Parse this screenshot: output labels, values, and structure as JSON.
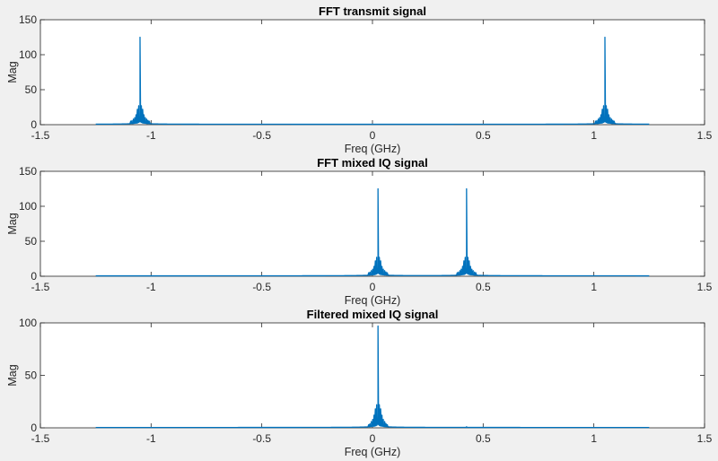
{
  "figure": {
    "background": "#f0f0f0",
    "line_color": "#0072bd"
  },
  "chart_data": [
    {
      "type": "line",
      "title": "FFT transmit signal",
      "xlabel": "Freq (GHz)",
      "ylabel": "Mag",
      "xlim": [
        -1.5,
        1.5
      ],
      "ylim": [
        0,
        150
      ],
      "xticks": [
        -1.5,
        -1,
        -0.5,
        0,
        0.5,
        1,
        1.5
      ],
      "xtick_labels": [
        "-1.5",
        "-1",
        "-0.5",
        "0",
        "0.5",
        "1",
        "1.5"
      ],
      "yticks": [
        0,
        50,
        100,
        150
      ],
      "ytick_labels": [
        "0",
        "50",
        "100",
        "150"
      ],
      "grid": false,
      "series": [
        {
          "x_range": [
            -1.25,
            1.25
          ],
          "baseline": 0.5,
          "peaks": [
            {
              "x": -1.05,
              "y": 125,
              "sidelobes": [
                27,
                22,
                14,
                10,
                8,
                6,
                5
              ]
            },
            {
              "x": 1.05,
              "y": 125,
              "sidelobes": [
                27,
                22,
                14,
                10,
                8,
                6,
                5
              ]
            }
          ]
        }
      ]
    },
    {
      "type": "line",
      "title": "FFT mixed IQ signal",
      "xlabel": "Freq (GHz)",
      "ylabel": "Mag",
      "xlim": [
        -1.5,
        1.5
      ],
      "ylim": [
        0,
        150
      ],
      "xticks": [
        -1.5,
        -1,
        -0.5,
        0,
        0.5,
        1,
        1.5
      ],
      "xtick_labels": [
        "-1.5",
        "-1",
        "-0.5",
        "0",
        "0.5",
        "1",
        "1.5"
      ],
      "yticks": [
        0,
        50,
        100,
        150
      ],
      "ytick_labels": [
        "0",
        "50",
        "100",
        "150"
      ],
      "grid": false,
      "series": [
        {
          "x_range": [
            -1.25,
            1.25
          ],
          "baseline": 0.5,
          "peaks": [
            {
              "x": 0.025,
              "y": 125,
              "sidelobes": [
                27,
                22,
                14,
                10,
                8,
                6,
                5
              ]
            },
            {
              "x": 0.425,
              "y": 125,
              "sidelobes": [
                27,
                22,
                14,
                10,
                8,
                6,
                5
              ]
            }
          ]
        }
      ]
    },
    {
      "type": "line",
      "title": "Filtered mixed IQ signal",
      "xlabel": "Freq (GHz)",
      "ylabel": "Mag",
      "xlim": [
        -1.5,
        1.5
      ],
      "ylim": [
        0,
        100
      ],
      "xticks": [
        -1.5,
        -1,
        -0.5,
        0,
        0.5,
        1,
        1.5
      ],
      "xtick_labels": [
        "-1.5",
        "-1",
        "-0.5",
        "0",
        "0.5",
        "1",
        "1.5"
      ],
      "yticks": [
        0,
        50,
        100
      ],
      "ytick_labels": [
        "0",
        "50",
        "100"
      ],
      "grid": false,
      "series": [
        {
          "x_range": [
            -1.25,
            1.25
          ],
          "baseline": 0.3,
          "peaks": [
            {
              "x": 0.025,
              "y": 97,
              "sidelobes": [
                22,
                18,
                12,
                8,
                6,
                4,
                3
              ]
            },
            {
              "x": 0.425,
              "y": 1,
              "sidelobes": []
            }
          ]
        }
      ]
    }
  ]
}
